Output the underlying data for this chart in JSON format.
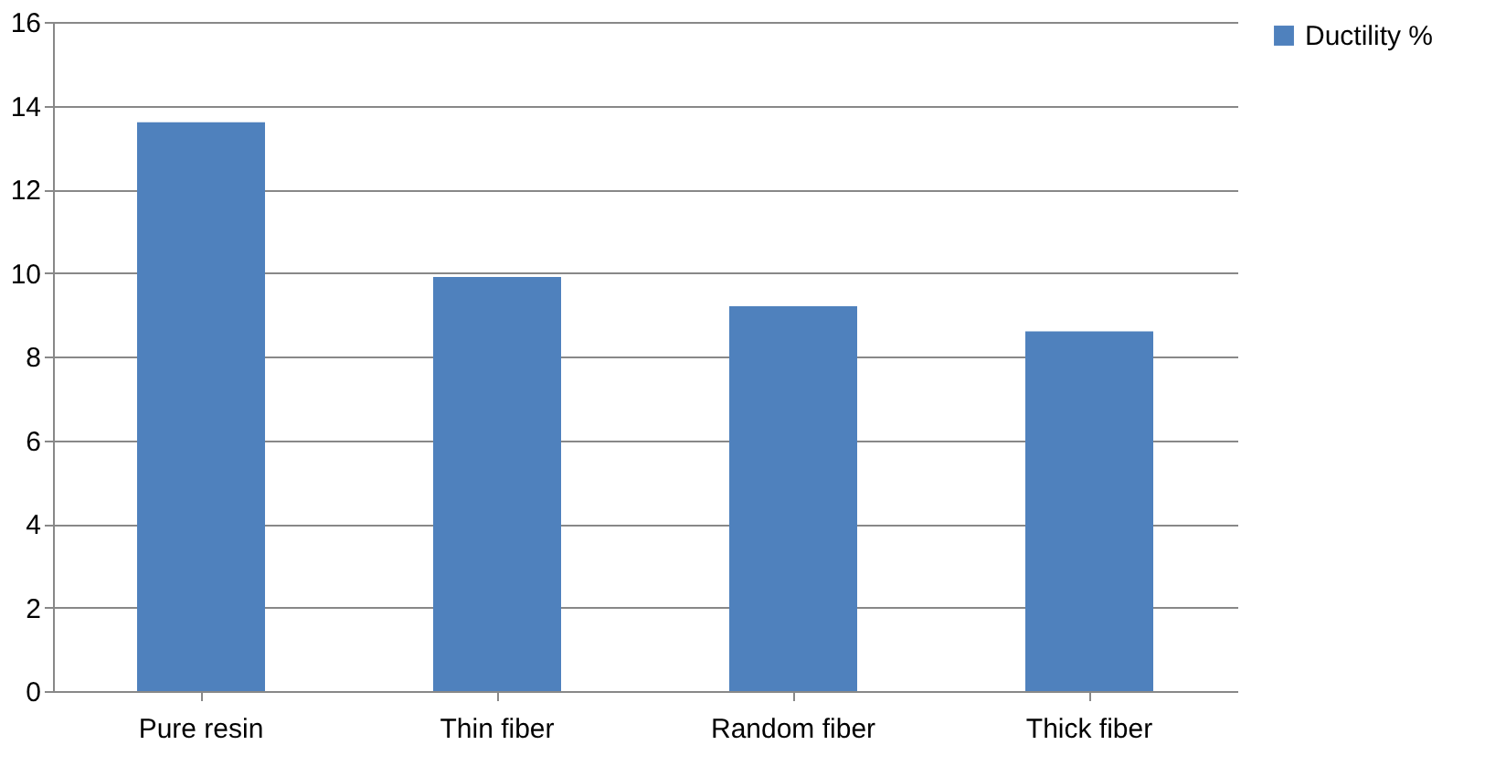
{
  "chart_data": {
    "type": "bar",
    "categories": [
      "Pure resin",
      "Thin fiber",
      "Random fiber",
      "Thick fiber"
    ],
    "series": [
      {
        "name": "Ductility %",
        "color": "#4f81bd",
        "values": [
          13.6,
          9.9,
          9.2,
          8.6
        ]
      }
    ],
    "ylim": [
      0,
      16
    ],
    "yticks": [
      0,
      2,
      4,
      6,
      8,
      10,
      12,
      14,
      16
    ],
    "grid": "y",
    "legend": "right"
  }
}
